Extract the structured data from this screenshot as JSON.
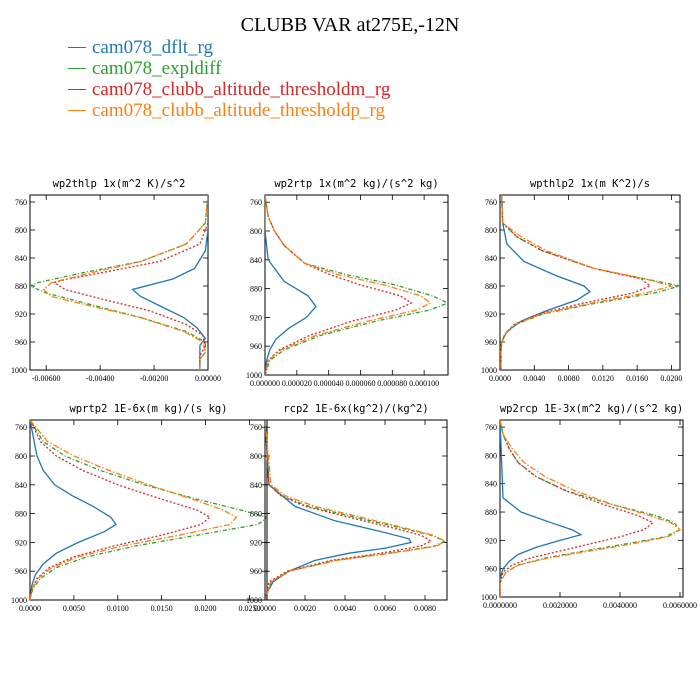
{
  "title": "CLUBB VAR at275E,-12N",
  "legend": [
    {
      "label": "cam078_dflt_rg",
      "color": "#1f77b4"
    },
    {
      "label": "cam078_expldiff",
      "color": "#2ca02c"
    },
    {
      "label": "cam078_clubb_altitude_thresholdm_rg",
      "color": "#d62728"
    },
    {
      "label": "cam078_clubb_altitude_thresholdp_rg",
      "color": "#ff7f0e"
    }
  ],
  "chart_data": [
    {
      "type": "line",
      "title": "wp2thlp  1x(m^2 K)/s^2",
      "xlim": [
        -0.0066,
        0.0
      ],
      "ylim": [
        1000,
        750
      ],
      "xticks": [
        -0.006,
        -0.004,
        -0.002,
        0.0
      ],
      "xtick_labels": [
        "-0.00600",
        "-0.00400",
        "-0.00200",
        "0.00000"
      ],
      "yticks": [
        760,
        800,
        840,
        880,
        920,
        960,
        1000
      ],
      "series": [
        {
          "y": [
            750,
            800,
            830,
            855,
            870,
            885,
            895,
            910,
            925,
            940,
            955,
            965,
            980,
            1000
          ],
          "x": [
            0,
            0,
            -0.0001,
            -0.0005,
            -0.0013,
            -0.0028,
            -0.0025,
            -0.0017,
            -0.0009,
            -0.0004,
            -0.0001,
            -0.0003,
            -0.0003,
            -0.0003
          ]
        },
        {
          "y": [
            750,
            790,
            820,
            845,
            860,
            875,
            880,
            890,
            905,
            925,
            945,
            960,
            975,
            985,
            1000
          ],
          "x": [
            0,
            -0.0001,
            -0.0008,
            -0.0025,
            -0.0045,
            -0.0063,
            -0.0066,
            -0.006,
            -0.0045,
            -0.0025,
            -0.0008,
            -0.0001,
            -0.0001,
            -0.0003,
            -0.0003
          ]
        },
        {
          "y": [
            750,
            790,
            820,
            845,
            860,
            870,
            875,
            885,
            900,
            915,
            935,
            950,
            965,
            980,
            1000
          ],
          "x": [
            0,
            0,
            -0.0003,
            -0.0018,
            -0.0038,
            -0.0052,
            -0.0057,
            -0.0053,
            -0.0038,
            -0.0022,
            -0.0008,
            -0.0002,
            -0.0001,
            -0.0003,
            -0.0003
          ]
        },
        {
          "y": [
            750,
            790,
            820,
            845,
            860,
            875,
            885,
            895,
            910,
            925,
            945,
            960,
            975,
            985,
            1000
          ],
          "x": [
            0,
            -0.0001,
            -0.0008,
            -0.0025,
            -0.0042,
            -0.0058,
            -0.0061,
            -0.0058,
            -0.0042,
            -0.0025,
            -0.0009,
            -0.0002,
            -0.0001,
            -0.0003,
            -0.0003
          ]
        }
      ]
    },
    {
      "type": "line",
      "title": "wp2rtp  1x(m^2 kg)/(s^2 kg)",
      "xlim": [
        0.0,
        0.000115
      ],
      "ylim": [
        1000,
        750
      ],
      "xticks": [
        0.0,
        2e-05,
        4e-05,
        6e-05,
        8e-05,
        0.0001
      ],
      "xtick_labels": [
        "0.000000",
        "0.000020",
        "0.000040",
        "0.000060",
        "0.000080",
        "0.000100"
      ],
      "yticks": [
        760,
        800,
        840,
        880,
        920,
        960,
        1000
      ],
      "series": [
        {
          "y": [
            750,
            800,
            840,
            870,
            890,
            905,
            920,
            935,
            950,
            965,
            980,
            1000
          ],
          "x": [
            0,
            0,
            2e-06,
            1.2e-05,
            2.7e-05,
            3.2e-05,
            2.6e-05,
            1.5e-05,
            7e-06,
            3e-06,
            1e-06,
            0
          ]
        },
        {
          "y": [
            750,
            780,
            800,
            820,
            845,
            860,
            875,
            890,
            900,
            910,
            925,
            945,
            965,
            980,
            1000
          ],
          "x": [
            0,
            2e-06,
            6e-06,
            1.2e-05,
            2.5e-05,
            5e-05,
            8.2e-05,
            0.000105,
            0.000115,
            0.000103,
            7e-05,
            3.5e-05,
            1.2e-05,
            3e-06,
            0
          ]
        },
        {
          "y": [
            750,
            780,
            800,
            820,
            845,
            860,
            875,
            890,
            900,
            910,
            925,
            945,
            965,
            980,
            1000
          ],
          "x": [
            0,
            2e-06,
            6e-06,
            1.2e-05,
            2.5e-05,
            4e-05,
            6e-05,
            8.5e-05,
            9.2e-05,
            8.2e-05,
            5.5e-05,
            2.8e-05,
            9e-06,
            2e-06,
            0
          ]
        },
        {
          "y": [
            750,
            780,
            800,
            820,
            845,
            860,
            875,
            890,
            900,
            910,
            925,
            945,
            965,
            980,
            1000
          ],
          "x": [
            0,
            2e-06,
            6e-06,
            1.2e-05,
            2.5e-05,
            4.5e-05,
            7.5e-05,
            9.8e-05,
            0.000104,
            9.5e-05,
            6.5e-05,
            3.2e-05,
            1e-05,
            2e-06,
            0
          ]
        }
      ]
    },
    {
      "type": "line",
      "title": "wpthlp2  1x(m K^2)/s",
      "xlim": [
        0.0,
        0.021
      ],
      "ylim": [
        1000,
        750
      ],
      "xticks": [
        0.0,
        0.004,
        0.008,
        0.012,
        0.016,
        0.02
      ],
      "xtick_labels": [
        "0.0000",
        "0.0040",
        "0.0080",
        "0.0120",
        "0.0160",
        "0.0200"
      ],
      "yticks": [
        760,
        800,
        840,
        880,
        920,
        960,
        1000
      ],
      "series": [
        {
          "y": [
            750,
            790,
            820,
            845,
            865,
            880,
            888,
            900,
            915,
            930,
            945,
            960,
            975,
            1000
          ],
          "x": [
            0.0002,
            0.0003,
            0.0008,
            0.0028,
            0.0065,
            0.0098,
            0.0105,
            0.009,
            0.0055,
            0.0025,
            0.0008,
            0.0002,
            0.0001,
            0.0001
          ]
        },
        {
          "y": [
            750,
            790,
            810,
            830,
            855,
            870,
            880,
            890,
            905,
            920,
            935,
            950,
            965,
            980,
            1000
          ],
          "x": [
            0.0002,
            0.0003,
            0.002,
            0.005,
            0.011,
            0.017,
            0.021,
            0.018,
            0.011,
            0.005,
            0.0018,
            0.0005,
            0.0001,
            0.0001,
            0.0001
          ]
        },
        {
          "y": [
            750,
            790,
            810,
            830,
            855,
            870,
            880,
            890,
            905,
            920,
            935,
            950,
            965,
            980,
            1000
          ],
          "x": [
            0.0002,
            0.0003,
            0.002,
            0.005,
            0.011,
            0.0165,
            0.0175,
            0.0155,
            0.0095,
            0.0045,
            0.0016,
            0.0005,
            0.0001,
            0.0001,
            0.0001
          ]
        },
        {
          "y": [
            750,
            790,
            810,
            830,
            855,
            870,
            880,
            890,
            905,
            920,
            935,
            950,
            965,
            980,
            1000
          ],
          "x": [
            0.0002,
            0.0003,
            0.0025,
            0.0055,
            0.011,
            0.017,
            0.02,
            0.017,
            0.0105,
            0.0048,
            0.0017,
            0.0005,
            0.0001,
            0.0001,
            0.0001
          ]
        }
      ]
    },
    {
      "type": "line",
      "title": "wprtp2  1E-6x(m kg)/(s kg)",
      "xlim": [
        0.0,
        0.027
      ],
      "ylim": [
        1000,
        750
      ],
      "xticks": [
        0.0,
        0.005,
        0.01,
        0.015,
        0.02,
        0.025
      ],
      "xtick_labels": [
        "0.0000",
        "0.0050",
        "0.0100",
        "0.0150",
        "0.0200",
        "0.0250"
      ],
      "yticks": [
        760,
        800,
        840,
        880,
        920,
        960,
        1000
      ],
      "series": [
        {
          "y": [
            750,
            800,
            820,
            840,
            855,
            870,
            885,
            895,
            905,
            920,
            935,
            950,
            965,
            980,
            1000
          ],
          "x": [
            0,
            0.0008,
            0.0015,
            0.0028,
            0.0048,
            0.0072,
            0.0092,
            0.0098,
            0.0085,
            0.0055,
            0.003,
            0.0015,
            0.0006,
            0.0002,
            0
          ]
        },
        {
          "y": [
            750,
            780,
            800,
            820,
            840,
            860,
            875,
            885,
            895,
            910,
            925,
            940,
            955,
            970,
            985,
            1000
          ],
          "x": [
            0,
            0.0015,
            0.004,
            0.008,
            0.013,
            0.019,
            0.024,
            0.027,
            0.026,
            0.019,
            0.012,
            0.0065,
            0.003,
            0.0012,
            0.0003,
            0
          ]
        },
        {
          "y": [
            750,
            780,
            800,
            820,
            840,
            860,
            875,
            885,
            895,
            910,
            925,
            940,
            955,
            970,
            985,
            1000
          ],
          "x": [
            0,
            0.0012,
            0.003,
            0.006,
            0.01,
            0.015,
            0.019,
            0.0205,
            0.0195,
            0.015,
            0.0095,
            0.005,
            0.0022,
            0.0008,
            0.0002,
            0
          ]
        },
        {
          "y": [
            750,
            780,
            800,
            820,
            840,
            860,
            875,
            885,
            895,
            910,
            925,
            940,
            955,
            970,
            985,
            1000
          ],
          "x": [
            0,
            0.002,
            0.005,
            0.009,
            0.0135,
            0.0185,
            0.022,
            0.0235,
            0.0228,
            0.017,
            0.0105,
            0.0055,
            0.0025,
            0.0009,
            0.0002,
            0
          ]
        }
      ]
    },
    {
      "type": "line",
      "title": "rcp2  1E-6x(kg^2)/(kg^2)",
      "xlim": [
        0.0,
        0.0091
      ],
      "ylim": [
        1000,
        750
      ],
      "xticks": [
        0.0,
        0.002,
        0.004,
        0.006,
        0.008
      ],
      "xtick_labels": [
        "0.0000",
        "0.0020",
        "0.0040",
        "0.0060",
        "0.0080"
      ],
      "yticks": [
        760,
        800,
        840,
        880,
        920,
        960,
        1000
      ],
      "series": [
        {
          "y": [
            750,
            840,
            870,
            890,
            905,
            915,
            920,
            928,
            935,
            945,
            960,
            975,
            990,
            1000
          ],
          "x": [
            0,
            0.0002,
            0.0015,
            0.0035,
            0.0058,
            0.0072,
            0.0073,
            0.006,
            0.0042,
            0.0025,
            0.0012,
            0.0004,
            0.0001,
            0
          ]
        },
        {
          "y": [
            750,
            840,
            855,
            870,
            885,
            900,
            910,
            918,
            925,
            935,
            945,
            960,
            975,
            1000
          ],
          "x": [
            0,
            0.0002,
            0.0008,
            0.0022,
            0.0045,
            0.0068,
            0.0083,
            0.009,
            0.0085,
            0.0062,
            0.0035,
            0.0012,
            0.0003,
            0
          ]
        },
        {
          "y": [
            750,
            840,
            855,
            870,
            885,
            900,
            910,
            918,
            925,
            935,
            945,
            960,
            975,
            1000
          ],
          "x": [
            0,
            0.0002,
            0.0008,
            0.002,
            0.0042,
            0.0064,
            0.0078,
            0.0083,
            0.0078,
            0.0058,
            0.0033,
            0.0011,
            0.0002,
            0
          ]
        },
        {
          "y": [
            750,
            840,
            855,
            870,
            885,
            900,
            910,
            918,
            925,
            935,
            945,
            960,
            975,
            1000
          ],
          "x": [
            0,
            0.0003,
            0.001,
            0.0025,
            0.0048,
            0.007,
            0.0084,
            0.009,
            0.0086,
            0.0063,
            0.0036,
            0.0012,
            0.0003,
            0
          ]
        }
      ]
    },
    {
      "type": "line",
      "title": "wp2rcp  1E-3x(m^2 kg)/(s^2 kg)",
      "xlim": [
        0.0,
        0.0061
      ],
      "ylim": [
        1000,
        750
      ],
      "xticks": [
        0.0,
        0.002,
        0.004,
        0.006
      ],
      "xtick_labels": [
        "0.0000000",
        "0.0020000",
        "0.0040000",
        "0.0060000"
      ],
      "yticks": [
        760,
        800,
        840,
        880,
        920,
        960,
        1000
      ],
      "series": [
        {
          "y": [
            750,
            860,
            880,
            895,
            905,
            912,
            920,
            930,
            940,
            950,
            960,
            975,
            1000
          ],
          "x": [
            0,
            0.0001,
            0.0007,
            0.0017,
            0.0024,
            0.0027,
            0.002,
            0.0012,
            0.0006,
            0.0003,
            0.0001,
            0,
            0
          ]
        },
        {
          "y": [
            750,
            770,
            790,
            810,
            830,
            850,
            870,
            885,
            895,
            905,
            915,
            925,
            935,
            945,
            955,
            965,
            980,
            1000
          ],
          "x": [
            0,
            0.0001,
            0.0003,
            0.0006,
            0.0012,
            0.0022,
            0.0038,
            0.0052,
            0.0058,
            0.006,
            0.0055,
            0.0042,
            0.0028,
            0.0015,
            0.0006,
            0.0002,
            0,
            0
          ]
        },
        {
          "y": [
            750,
            770,
            790,
            810,
            830,
            850,
            870,
            885,
            895,
            905,
            915,
            925,
            935,
            945,
            955,
            965,
            980,
            1000
          ],
          "x": [
            0,
            0.0001,
            0.0003,
            0.0006,
            0.0012,
            0.0022,
            0.0035,
            0.0046,
            0.0051,
            0.0048,
            0.004,
            0.003,
            0.002,
            0.001,
            0.0004,
            0.0001,
            0,
            0
          ]
        },
        {
          "y": [
            750,
            770,
            790,
            810,
            830,
            850,
            870,
            885,
            895,
            905,
            915,
            925,
            935,
            945,
            955,
            965,
            980,
            1000
          ],
          "x": [
            0,
            0.0001,
            0.0004,
            0.0008,
            0.0015,
            0.0025,
            0.0038,
            0.005,
            0.0057,
            0.006,
            0.0056,
            0.0044,
            0.003,
            0.0016,
            0.0006,
            0.0002,
            0,
            0
          ]
        }
      ]
    }
  ]
}
